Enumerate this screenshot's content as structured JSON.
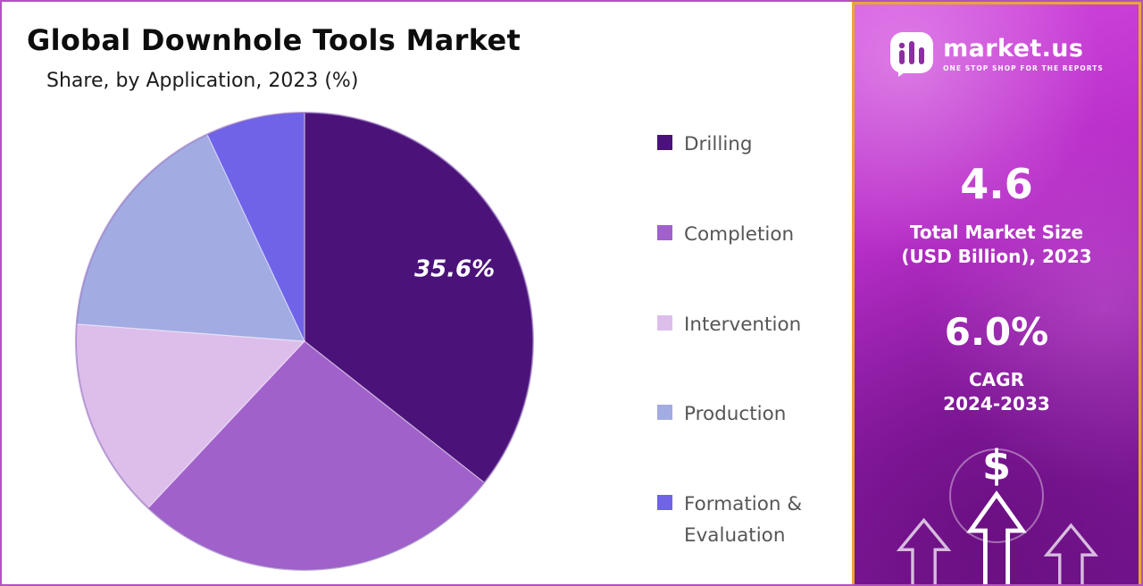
{
  "header": {
    "title": "Global Downhole Tools Market",
    "subtitle": "Share, by Application, 2023 (%)"
  },
  "chart_data": {
    "type": "pie",
    "title": "Global Downhole Tools Market",
    "subtitle": "Share, by Application, 2023 (%)",
    "unit": "%",
    "start_angle_deg": 0,
    "direction": "clockwise",
    "legend_position": "right",
    "slices": [
      {
        "label": "Drilling",
        "value": 35.6,
        "display_label": "35.6%",
        "color": "#4b1379"
      },
      {
        "label": "Completion",
        "value": 26.4,
        "color": "#a161ca"
      },
      {
        "label": "Intervention",
        "value": 14.2,
        "color": "#ddbeeb"
      },
      {
        "label": "Production",
        "value": 16.8,
        "color": "#a2abe2"
      },
      {
        "label": "Formation & Evaluation",
        "value": 7.0,
        "color": "#6f63e8"
      }
    ]
  },
  "sidebar": {
    "brand": {
      "name": "market.us",
      "tagline": "ONE STOP SHOP FOR THE REPORTS"
    },
    "stats": [
      {
        "value": "4.6",
        "label_lines": [
          "Total Market Size",
          "(USD Billion), 2023"
        ]
      },
      {
        "value": "6.0%",
        "label_lines": [
          "CAGR",
          "2024-2033"
        ]
      }
    ],
    "dollar_symbol": "$",
    "colors": {
      "gradient_top": "#d44ae0",
      "gradient_bottom": "#7a1694",
      "panel_border": "#e9a43c",
      "frame_border": "#b153bd"
    }
  }
}
